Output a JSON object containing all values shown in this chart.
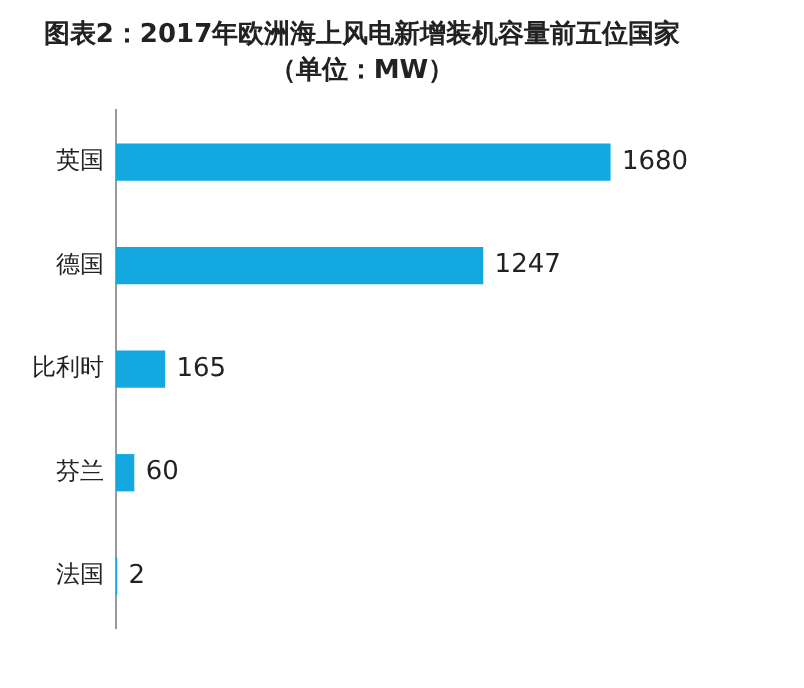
{
  "chart_data": {
    "type": "bar",
    "orientation": "horizontal",
    "title": "图表2：2017年欧洲海上风电新增装机容量前五位国家",
    "subtitle": "（单位：MW）",
    "categories": [
      "英国",
      "德国",
      "比利时",
      "芬兰",
      "法国"
    ],
    "values": [
      1680,
      1247,
      165,
      60,
      2
    ],
    "color": "#13a8e0",
    "data_labels": true,
    "legend": false
  }
}
